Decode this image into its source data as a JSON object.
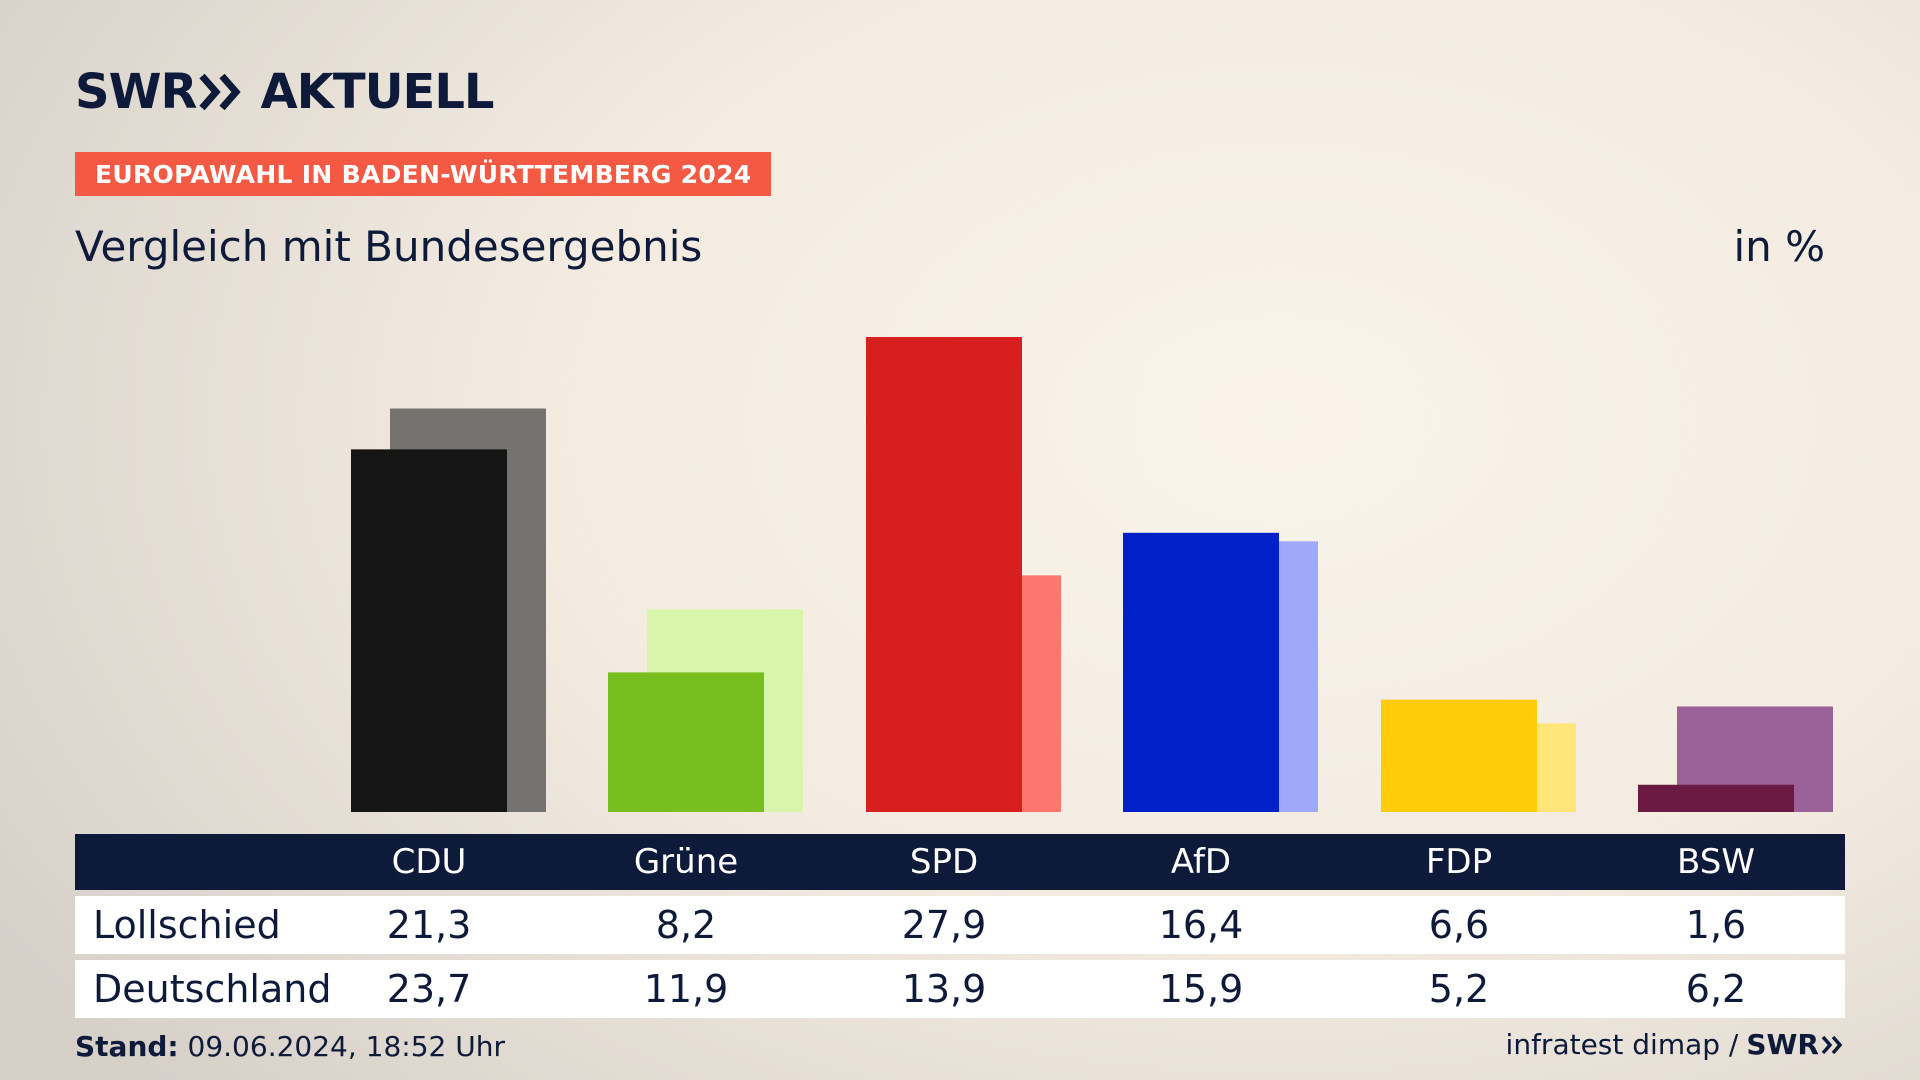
{
  "header": {
    "logo_left": "SWR",
    "logo_right": "AKTUELL",
    "badge": "EUROPAWAHL IN BADEN-WÜRTTEMBERG 2024",
    "subtitle": "Vergleich mit Bundesergebnis",
    "unit": "in %"
  },
  "chart_data": {
    "type": "bar",
    "categories": [
      "CDU",
      "Grüne",
      "SPD",
      "AfD",
      "FDP",
      "BSW"
    ],
    "series": [
      {
        "name": "Lollschied",
        "values": [
          21.3,
          8.2,
          27.9,
          16.4,
          6.6,
          1.6
        ]
      },
      {
        "name": "Deutschland",
        "values": [
          23.7,
          11.9,
          13.9,
          15.9,
          5.2,
          6.2
        ]
      }
    ],
    "labels": {
      "Lollschied": [
        "21,3",
        "8,2",
        "27,9",
        "16,4",
        "6,6",
        "1,6"
      ],
      "Deutschland": [
        "23,7",
        "11,9",
        "13,9",
        "15,9",
        "5,2",
        "6,2"
      ]
    },
    "colors": {
      "primary": [
        "#151515",
        "#78be1e",
        "#d71f1f",
        "#0021c8",
        "#ffcc0a",
        "#6a1a42"
      ],
      "secondary": [
        "#757370",
        "#d9f5ab",
        "#ff7570",
        "#9ea9fb",
        "#ffe57a",
        "#9a6098"
      ]
    },
    "ylim": [
      0,
      30
    ],
    "grid": false,
    "legend": "table-below"
  },
  "footer": {
    "stand_label": "Stand:",
    "stand_value": "09.06.2024, 18:52 Uhr",
    "source": "infratest dimap /",
    "source_logo": "SWR"
  }
}
